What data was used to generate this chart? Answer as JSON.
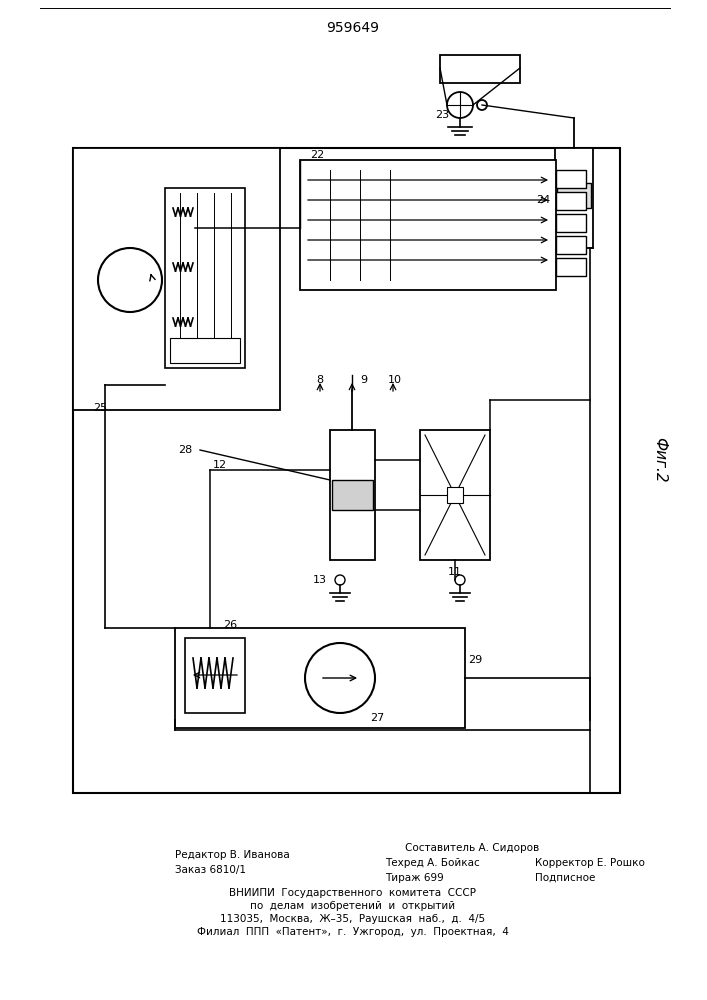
{
  "title": "959649",
  "fig2_label": "Фиг.2",
  "bg_color": "#ffffff",
  "line_color": "#000000",
  "lw": 1.2,
  "footer": [
    [
      "Редактор В. Иванова",
      175,
      855
    ],
    [
      "Составитель А. Сидоров",
      405,
      848
    ],
    [
      "Заказ 6810/1",
      175,
      870
    ],
    [
      "Техред А. Бойкас",
      385,
      863
    ],
    [
      "Корректор Е. Рошко",
      535,
      863
    ],
    [
      "Тираж 699",
      385,
      878
    ],
    [
      "Подписное",
      535,
      878
    ],
    [
      "ВНИИПИ  Государственного  комитета  СССР",
      353,
      893
    ],
    [
      "по  делам  изобретений  и  открытий",
      353,
      906
    ],
    [
      "113035,  Москва,  Ж–35,  Раушская  наб.,  д.  4/5",
      353,
      919
    ],
    [
      "Филиал  ППП  «Патент»,  г.  Ужгород,  ул.  Проектная,  4",
      353,
      932
    ]
  ]
}
